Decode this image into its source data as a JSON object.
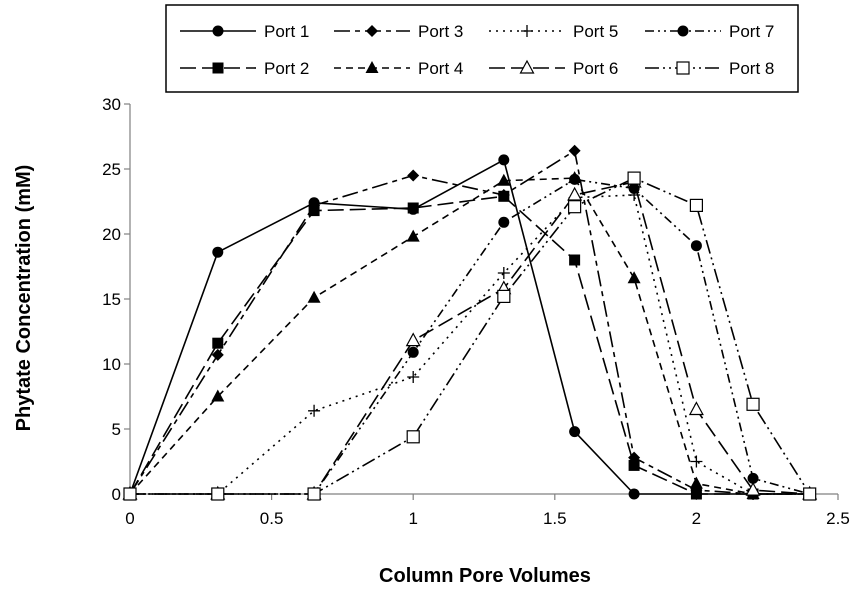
{
  "chart_data": {
    "type": "line",
    "title": "",
    "xlabel": "Column Pore Volumes",
    "ylabel": "Phytate Concentration (mM)",
    "xlim": [
      0,
      2.5
    ],
    "ylim": [
      0,
      30
    ],
    "xticks": [
      "0",
      "0.5",
      "1",
      "1.5",
      "2",
      "2.5"
    ],
    "yticks": [
      "0",
      "5",
      "10",
      "15",
      "20",
      "25",
      "30"
    ],
    "grid": false,
    "legend_position": "top",
    "series": [
      {
        "name": "Port 1",
        "marker": "circle",
        "dash": "solid",
        "x": [
          0,
          0.31,
          0.65,
          1.0,
          1.32,
          1.57,
          1.78,
          2.0,
          2.2,
          2.4
        ],
        "y": [
          0,
          18.6,
          22.4,
          21.9,
          25.7,
          4.8,
          0,
          0,
          0,
          0
        ]
      },
      {
        "name": "Port 2",
        "marker": "square",
        "dash": "longdash",
        "x": [
          0,
          0.31,
          0.65,
          1.0,
          1.32,
          1.57,
          1.78,
          2.0,
          2.2,
          2.4
        ],
        "y": [
          0,
          11.6,
          21.8,
          22.0,
          22.9,
          18.0,
          2.2,
          0,
          0,
          0
        ]
      },
      {
        "name": "Port 3",
        "marker": "diamond",
        "dash": "longshort",
        "x": [
          0,
          0.31,
          0.65,
          1.0,
          1.32,
          1.57,
          1.78,
          2.0,
          2.2,
          2.4
        ],
        "y": [
          0,
          10.7,
          22.2,
          24.5,
          23.0,
          26.4,
          2.8,
          0.3,
          0,
          0
        ]
      },
      {
        "name": "Port 4",
        "marker": "triangle",
        "dash": "dash",
        "x": [
          0,
          0.31,
          0.65,
          1.0,
          1.32,
          1.57,
          1.78,
          2.0,
          2.2,
          2.4
        ],
        "y": [
          0,
          7.5,
          15.1,
          19.8,
          24.1,
          24.3,
          16.6,
          0.8,
          0,
          0
        ]
      },
      {
        "name": "Port 5",
        "marker": "plus",
        "dash": "dot",
        "x": [
          0,
          0.31,
          0.65,
          1.0,
          1.32,
          1.57,
          1.78,
          2.0,
          2.2,
          2.4
        ],
        "y": [
          0,
          0,
          6.4,
          9.0,
          17.0,
          22.8,
          23.0,
          2.5,
          0,
          0
        ]
      },
      {
        "name": "Port 6",
        "marker": "triangle-open",
        "dash": "longdash",
        "x": [
          0,
          0.31,
          0.65,
          1.0,
          1.32,
          1.57,
          1.78,
          2.0,
          2.2,
          2.4
        ],
        "y": [
          0,
          0,
          0,
          11.8,
          15.8,
          23.0,
          24.0,
          6.5,
          0.3,
          0
        ]
      },
      {
        "name": "Port 7",
        "marker": "circle",
        "dash": "dashdotdot",
        "x": [
          0,
          0.31,
          0.65,
          1.0,
          1.32,
          1.57,
          1.78,
          2.0,
          2.2,
          2.4
        ],
        "y": [
          0,
          0,
          0,
          10.9,
          20.9,
          24.2,
          23.5,
          19.1,
          1.2,
          0
        ]
      },
      {
        "name": "Port 8",
        "marker": "square-open",
        "dash": "longdashdotdot",
        "x": [
          0,
          0.31,
          0.65,
          1.0,
          1.32,
          1.57,
          1.78,
          2.0,
          2.2,
          2.4
        ],
        "y": [
          0,
          0,
          0,
          4.4,
          15.2,
          22.1,
          24.3,
          22.2,
          6.9,
          0
        ]
      }
    ]
  }
}
